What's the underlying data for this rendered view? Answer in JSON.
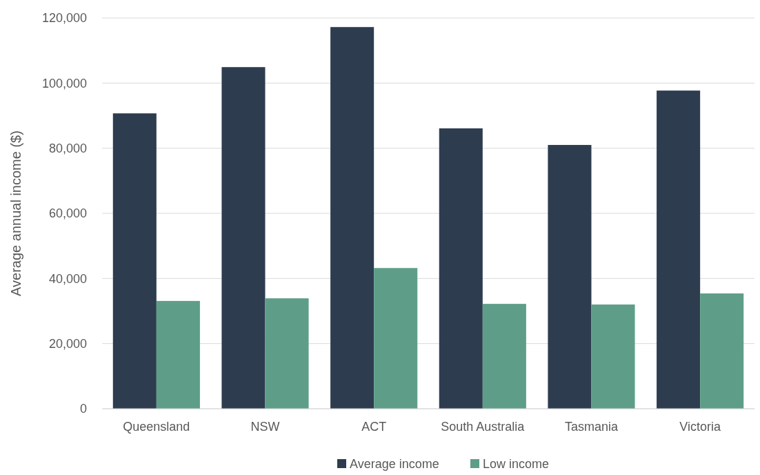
{
  "chart_data": {
    "type": "bar",
    "ylabel": "Average annual income ($)",
    "categories": [
      "Queensland",
      "NSW",
      "ACT",
      "South Australia",
      "Tasmania",
      "Victoria"
    ],
    "series": [
      {
        "name": "Average income",
        "color": "#2e3c50",
        "values": [
          90700,
          104900,
          117200,
          86100,
          81000,
          97700
        ]
      },
      {
        "name": "Low income",
        "color": "#5e9e88",
        "values": [
          33100,
          33900,
          43200,
          32200,
          32000,
          35400
        ]
      }
    ],
    "ylim": [
      0,
      120000
    ],
    "yticks": [
      {
        "value": 0,
        "label": "0"
      },
      {
        "value": 20000,
        "label": "20,000"
      },
      {
        "value": 40000,
        "label": "40,000"
      },
      {
        "value": 60000,
        "label": "60,000"
      },
      {
        "value": 80000,
        "label": "80,000"
      },
      {
        "value": 100000,
        "label": "100,000"
      },
      {
        "value": 120000,
        "label": "120,000"
      }
    ],
    "grid": "y",
    "legend": "bottom"
  }
}
